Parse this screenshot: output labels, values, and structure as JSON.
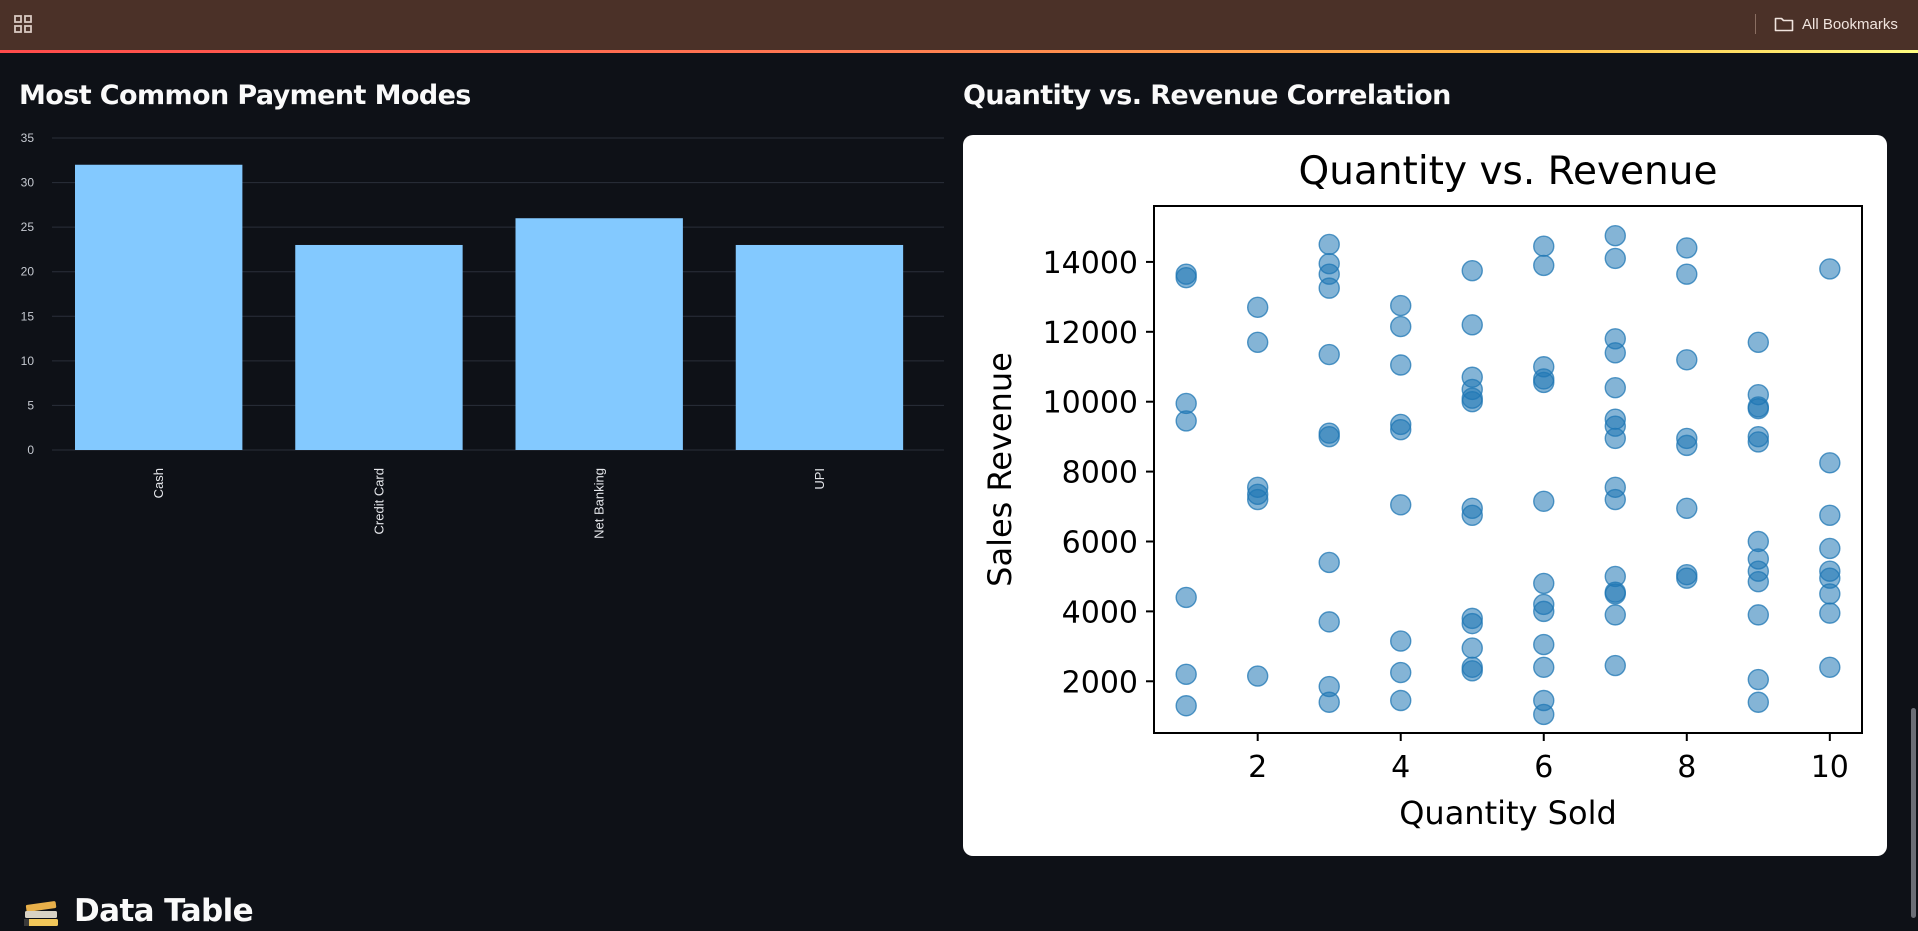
{
  "bookmarks_bar": {
    "label": "All Bookmarks"
  },
  "left_panel": {
    "title": "Most Common Payment Modes",
    "chart_data": {
      "type": "bar",
      "categories": [
        "Cash",
        "Credit Card",
        "Net Banking",
        "UPI"
      ],
      "values": [
        32,
        23,
        26,
        23
      ],
      "ylim": [
        0,
        35
      ],
      "yticks": [
        0,
        5,
        10,
        15,
        20,
        25,
        30,
        35
      ],
      "grid": true,
      "bar_color": "#83c9ff"
    }
  },
  "right_panel": {
    "title": "Quantity vs. Revenue Correlation",
    "chart_data": {
      "type": "scatter",
      "title": "Quantity vs. Revenue",
      "xlabel": "Quantity Sold",
      "ylabel": "Sales Revenue",
      "xlim": [
        0.55,
        10.45
      ],
      "ylim": [
        520,
        15600
      ],
      "xticks": [
        2,
        4,
        6,
        8,
        10
      ],
      "yticks": [
        2000,
        4000,
        6000,
        8000,
        10000,
        12000,
        14000
      ],
      "marker_color": "#1f77b4",
      "points": [
        [
          1,
          13650
        ],
        [
          1,
          13550
        ],
        [
          1,
          9950
        ],
        [
          1,
          9450
        ],
        [
          1,
          4400
        ],
        [
          1,
          2200
        ],
        [
          1,
          1300
        ],
        [
          2,
          12700
        ],
        [
          2,
          11700
        ],
        [
          2,
          7550
        ],
        [
          2,
          7350
        ],
        [
          2,
          7200
        ],
        [
          2,
          2150
        ],
        [
          3,
          14500
        ],
        [
          3,
          13950
        ],
        [
          3,
          13650
        ],
        [
          3,
          13250
        ],
        [
          3,
          11350
        ],
        [
          3,
          9100
        ],
        [
          3,
          9000
        ],
        [
          3,
          5400
        ],
        [
          3,
          3700
        ],
        [
          3,
          1850
        ],
        [
          3,
          1400
        ],
        [
          4,
          12750
        ],
        [
          4,
          12150
        ],
        [
          4,
          11050
        ],
        [
          4,
          9350
        ],
        [
          4,
          9200
        ],
        [
          4,
          7050
        ],
        [
          4,
          3150
        ],
        [
          4,
          2250
        ],
        [
          4,
          1450
        ],
        [
          5,
          13750
        ],
        [
          5,
          12200
        ],
        [
          5,
          10700
        ],
        [
          5,
          10350
        ],
        [
          5,
          10100
        ],
        [
          5,
          10000
        ],
        [
          5,
          6950
        ],
        [
          5,
          6750
        ],
        [
          5,
          3800
        ],
        [
          5,
          3650
        ],
        [
          5,
          2950
        ],
        [
          5,
          2400
        ],
        [
          5,
          2300
        ],
        [
          6,
          14450
        ],
        [
          6,
          13900
        ],
        [
          6,
          11000
        ],
        [
          6,
          10650
        ],
        [
          6,
          10550
        ],
        [
          6,
          7150
        ],
        [
          6,
          4800
        ],
        [
          6,
          4200
        ],
        [
          6,
          4000
        ],
        [
          6,
          3050
        ],
        [
          6,
          2400
        ],
        [
          6,
          1450
        ],
        [
          6,
          1050
        ],
        [
          7,
          14750
        ],
        [
          7,
          14100
        ],
        [
          7,
          11800
        ],
        [
          7,
          11400
        ],
        [
          7,
          10400
        ],
        [
          7,
          9500
        ],
        [
          7,
          9300
        ],
        [
          7,
          8950
        ],
        [
          7,
          7550
        ],
        [
          7,
          7200
        ],
        [
          7,
          5000
        ],
        [
          7,
          4550
        ],
        [
          7,
          4500
        ],
        [
          7,
          3900
        ],
        [
          7,
          2450
        ],
        [
          8,
          14400
        ],
        [
          8,
          13650
        ],
        [
          8,
          11200
        ],
        [
          8,
          8950
        ],
        [
          8,
          8750
        ],
        [
          8,
          6950
        ],
        [
          8,
          5050
        ],
        [
          8,
          4950
        ],
        [
          9,
          11700
        ],
        [
          9,
          10200
        ],
        [
          9,
          9850
        ],
        [
          9,
          9800
        ],
        [
          9,
          9000
        ],
        [
          9,
          8850
        ],
        [
          9,
          6000
        ],
        [
          9,
          5500
        ],
        [
          9,
          5150
        ],
        [
          9,
          4850
        ],
        [
          9,
          3900
        ],
        [
          9,
          2050
        ],
        [
          9,
          1400
        ],
        [
          10,
          13800
        ],
        [
          10,
          8250
        ],
        [
          10,
          6750
        ],
        [
          10,
          5800
        ],
        [
          10,
          5150
        ],
        [
          10,
          4950
        ],
        [
          10,
          4500
        ],
        [
          10,
          3950
        ],
        [
          10,
          2400
        ]
      ]
    }
  },
  "data_table": {
    "heading": "Data Table"
  }
}
